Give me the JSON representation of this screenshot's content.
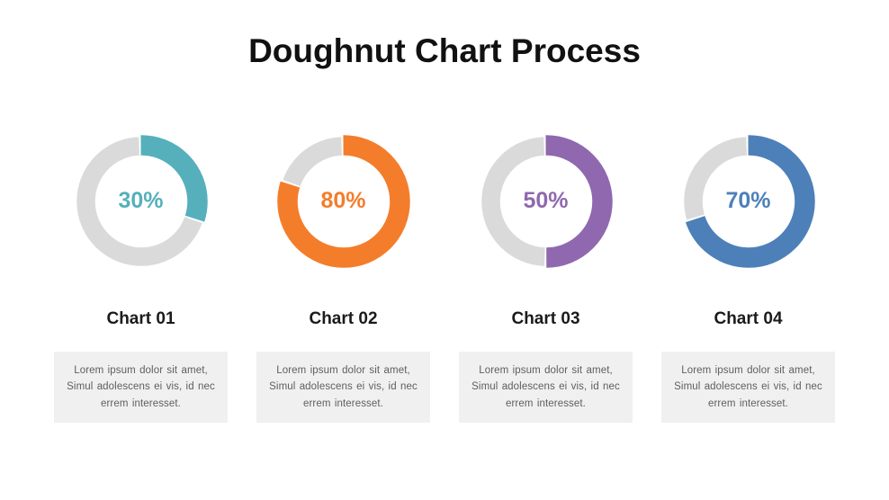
{
  "slide": {
    "title": "Doughnut Chart Process"
  },
  "theme": {
    "background": "#FFFFFF",
    "track_color": "#DADADA",
    "card_bg": "#F0F0F0",
    "title_color": "#111111",
    "name_color": "#1B1B1B",
    "desc_color": "#5E5E5E"
  },
  "charts": [
    {
      "name": "Chart 01",
      "percent": 30,
      "percent_label": "30%",
      "color": "#55B0BB",
      "description": "Lorem ipsum dolor sit amet,\nSimul adolescens ei vis, id nec\nerrem interesset."
    },
    {
      "name": "Chart 02",
      "percent": 80,
      "percent_label": "80%",
      "color": "#F47D2B",
      "description": "Lorem ipsum dolor sit amet,\nSimul adolescens ei vis, id nec\nerrem interesset."
    },
    {
      "name": "Chart 03",
      "percent": 50,
      "percent_label": "50%",
      "color": "#8F68AF",
      "description": "Lorem ipsum dolor sit amet,\nSimul adolescens ei vis, id nec\nerrem interesset."
    },
    {
      "name": "Chart 04",
      "percent": 70,
      "percent_label": "70%",
      "color": "#4D80B9",
      "description": "Lorem ipsum dolor sit amet,\nSimul adolescens ei vis, id nec\nerrem interesset."
    }
  ],
  "chart_data": {
    "type": "pie",
    "variant": "doughnut",
    "title": "Doughnut Chart Process",
    "direction": "clockwise",
    "start_angle": "top (12 o'clock)",
    "units": "percent",
    "remainder_color": "#DADADA",
    "series": [
      {
        "name": "Chart 01",
        "value": 30,
        "remainder": 70,
        "color": "#55B0BB",
        "center_label": "30%"
      },
      {
        "name": "Chart 02",
        "value": 80,
        "remainder": 20,
        "color": "#F47D2B",
        "center_label": "80%"
      },
      {
        "name": "Chart 03",
        "value": 50,
        "remainder": 50,
        "color": "#8F68AF",
        "center_label": "50%"
      },
      {
        "name": "Chart 04",
        "value": 70,
        "remainder": 30,
        "color": "#4D80B9",
        "center_label": "70%"
      }
    ]
  }
}
